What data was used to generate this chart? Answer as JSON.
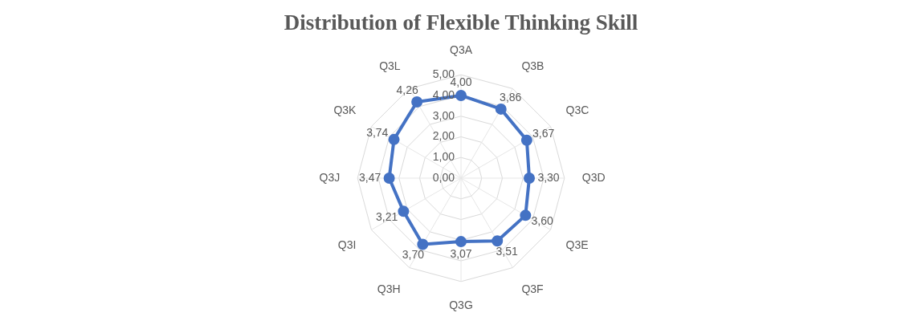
{
  "chart_data": {
    "type": "radar",
    "title": "Distribution of Flexible Thinking Skill",
    "categories": [
      "Q3A",
      "Q3B",
      "Q3C",
      "Q3D",
      "Q3E",
      "Q3F",
      "Q3G",
      "Q3H",
      "Q3I",
      "Q3J",
      "Q3K",
      "Q3L"
    ],
    "series": [
      {
        "color": "#4472c4",
        "values": [
          4.0,
          3.86,
          3.67,
          3.3,
          3.6,
          3.51,
          3.07,
          3.7,
          3.21,
          3.47,
          3.74,
          4.26
        ],
        "value_labels": [
          "4,00",
          "3,86",
          "3,67",
          "3,30",
          "3,60",
          "3,51",
          "3,07",
          "3,70",
          "3,21",
          "3,47",
          "3,74",
          "4,26"
        ]
      }
    ],
    "ylim": [
      0,
      5
    ],
    "yticks": [
      {
        "value": 0,
        "label": "0,00"
      },
      {
        "value": 1,
        "label": "1,00"
      },
      {
        "value": 2,
        "label": "2,00"
      },
      {
        "value": 3,
        "label": "3,00"
      },
      {
        "value": 4,
        "label": "4,00"
      },
      {
        "value": 5,
        "label": "5,00"
      }
    ],
    "grid": true,
    "legend": false,
    "marker": "circle",
    "line_style": "solid"
  }
}
